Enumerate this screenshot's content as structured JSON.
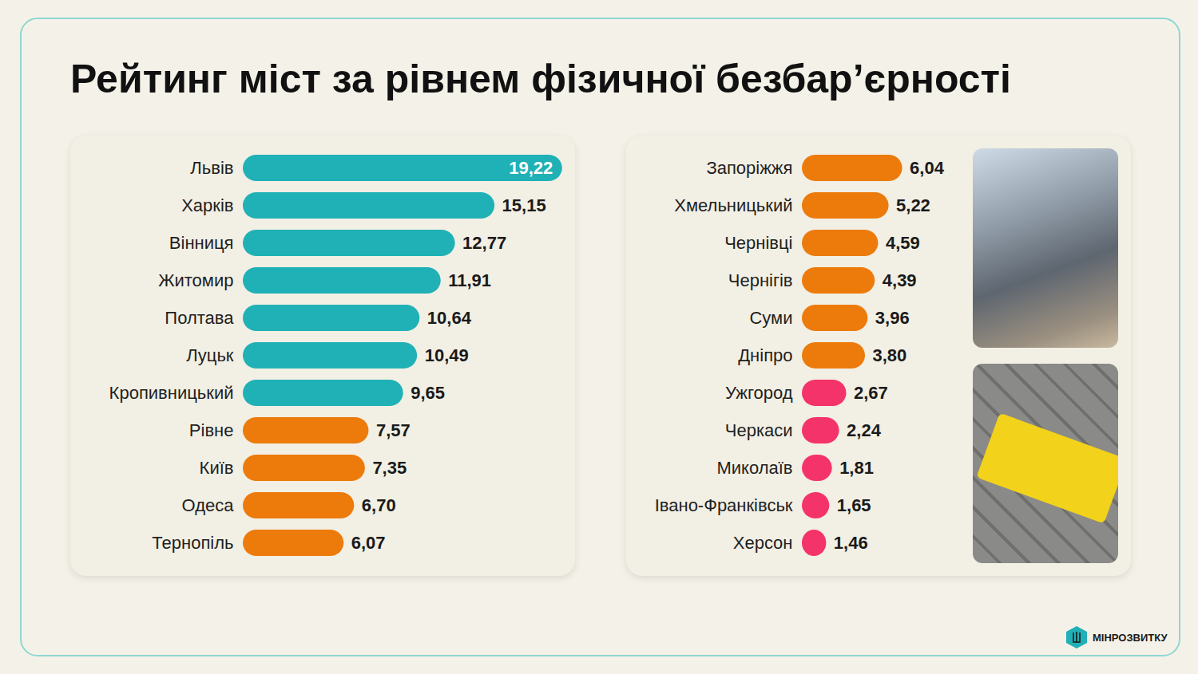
{
  "chart_data": [
    {
      "type": "bar",
      "title": "Рейтинг міст за рівнем фізичної безбар’єрності",
      "orientation": "horizontal",
      "categories": [
        "Львів",
        "Харків",
        "Вінниця",
        "Житомир",
        "Полтава",
        "Луцьк",
        "Кропивницький",
        "Рівне",
        "Київ",
        "Одеса",
        "Тернопіль"
      ],
      "values": [
        19.22,
        15.15,
        12.77,
        11.91,
        10.64,
        10.49,
        9.65,
        7.57,
        7.35,
        6.7,
        6.07
      ],
      "value_labels": [
        "19,22",
        "15,15",
        "12,77",
        "11,91",
        "10,64",
        "10,49",
        "9,65",
        "7,57",
        "7,35",
        "6,70",
        "6,07"
      ],
      "colors": [
        "#1fb1b6",
        "#1fb1b6",
        "#1fb1b6",
        "#1fb1b6",
        "#1fb1b6",
        "#1fb1b6",
        "#1fb1b6",
        "#ec7b0b",
        "#ec7b0b",
        "#ec7b0b",
        "#ec7b0b"
      ],
      "xlim": [
        0,
        20
      ],
      "data_labels": true,
      "tick_labels": "y",
      "grid": false
    },
    {
      "type": "bar",
      "orientation": "horizontal",
      "categories": [
        "Запоріжжя",
        "Хмельницький",
        "Чернівці",
        "Чернігів",
        "Суми",
        "Дніпро",
        "Ужгород",
        "Черкаси",
        "Миколаїв",
        "Івано-Франківськ",
        "Херсон"
      ],
      "values": [
        6.04,
        5.22,
        4.59,
        4.39,
        3.96,
        3.8,
        2.67,
        2.24,
        1.81,
        1.65,
        1.46
      ],
      "value_labels": [
        "6,04",
        "5,22",
        "4,59",
        "4,39",
        "3,96",
        "3,80",
        "2,67",
        "2,24",
        "1,81",
        "1,65",
        "1,46"
      ],
      "colors": [
        "#ec7b0b",
        "#ec7b0b",
        "#ec7b0b",
        "#ec7b0b",
        "#ec7b0b",
        "#ec7b0b",
        "#f5336b",
        "#f5336b",
        "#f5336b",
        "#f5336b",
        "#f5336b"
      ],
      "xlim": [
        0,
        9
      ],
      "data_labels": true,
      "tick_labels": "y",
      "grid": false,
      "annotations": [
        "МІНРОЗВИТКУ"
      ]
    }
  ]
}
